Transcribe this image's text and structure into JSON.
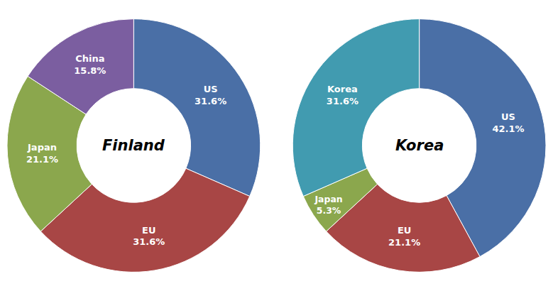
{
  "chart_data": [
    {
      "type": "pie",
      "title": "Finland",
      "categories": [
        "US",
        "EU",
        "Japan",
        "China"
      ],
      "values": [
        31.6,
        31.6,
        21.1,
        15.8
      ],
      "value_labels": [
        "31.6%",
        "31.6%",
        "21.1%",
        "15.8%"
      ],
      "colors": [
        "#4a6fa6",
        "#a84645",
        "#8ba74d",
        "#7b5ea0"
      ],
      "data_labels": true
    },
    {
      "type": "pie",
      "title": "Korea",
      "categories": [
        "US",
        "EU",
        "Japan",
        "Korea"
      ],
      "values": [
        42.1,
        21.1,
        5.3,
        31.6
      ],
      "value_labels": [
        "42.1%",
        "21.1%",
        "5.3%",
        "31.6%"
      ],
      "colors": [
        "#4a6fa6",
        "#a84645",
        "#8ba74d",
        "#419bb0"
      ],
      "data_labels": true
    }
  ]
}
